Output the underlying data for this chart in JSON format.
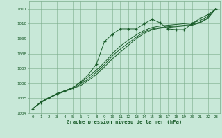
{
  "x": [
    0,
    1,
    2,
    3,
    4,
    5,
    6,
    7,
    8,
    9,
    10,
    11,
    12,
    13,
    14,
    15,
    16,
    17,
    18,
    19,
    20,
    21,
    22,
    23
  ],
  "line_marker": [
    1004.3,
    1004.7,
    1005.0,
    1005.3,
    1005.5,
    1005.7,
    1006.1,
    1006.6,
    1007.3,
    1008.8,
    1009.3,
    1009.65,
    1009.65,
    1009.65,
    1010.0,
    1010.3,
    1010.05,
    1009.65,
    1009.6,
    1009.6,
    1010.0,
    1010.35,
    1010.6,
    1011.0
  ],
  "line_a": [
    1004.3,
    1004.75,
    1005.0,
    1005.25,
    1005.45,
    1005.65,
    1005.85,
    1006.2,
    1006.6,
    1007.1,
    1007.65,
    1008.1,
    1008.55,
    1009.0,
    1009.35,
    1009.6,
    1009.7,
    1009.75,
    1009.8,
    1009.85,
    1009.9,
    1010.05,
    1010.35,
    1011.0
  ],
  "line_b": [
    1004.3,
    1004.75,
    1005.0,
    1005.3,
    1005.5,
    1005.65,
    1005.95,
    1006.3,
    1006.75,
    1007.25,
    1007.85,
    1008.3,
    1008.7,
    1009.1,
    1009.45,
    1009.65,
    1009.75,
    1009.8,
    1009.85,
    1009.9,
    1009.95,
    1010.1,
    1010.4,
    1011.0
  ],
  "line_c": [
    1004.3,
    1004.75,
    1005.05,
    1005.3,
    1005.5,
    1005.7,
    1006.05,
    1006.45,
    1006.9,
    1007.4,
    1008.0,
    1008.5,
    1008.9,
    1009.25,
    1009.55,
    1009.75,
    1009.85,
    1009.9,
    1009.95,
    1010.0,
    1010.05,
    1010.2,
    1010.5,
    1011.0
  ],
  "ylim": [
    1004,
    1011.5
  ],
  "yticks": [
    1004,
    1005,
    1006,
    1007,
    1008,
    1009,
    1010,
    1011
  ],
  "xticks": [
    0,
    1,
    2,
    3,
    4,
    5,
    6,
    7,
    8,
    9,
    10,
    11,
    12,
    13,
    14,
    15,
    16,
    17,
    18,
    19,
    20,
    21,
    22,
    23
  ],
  "xlabel": "Graphe pression niveau de la mer (hPa)",
  "bg_color": "#c8e8d8",
  "grid_color": "#7aab8a",
  "line_color": "#1a5c2a",
  "title_color": "#1a5c2a"
}
